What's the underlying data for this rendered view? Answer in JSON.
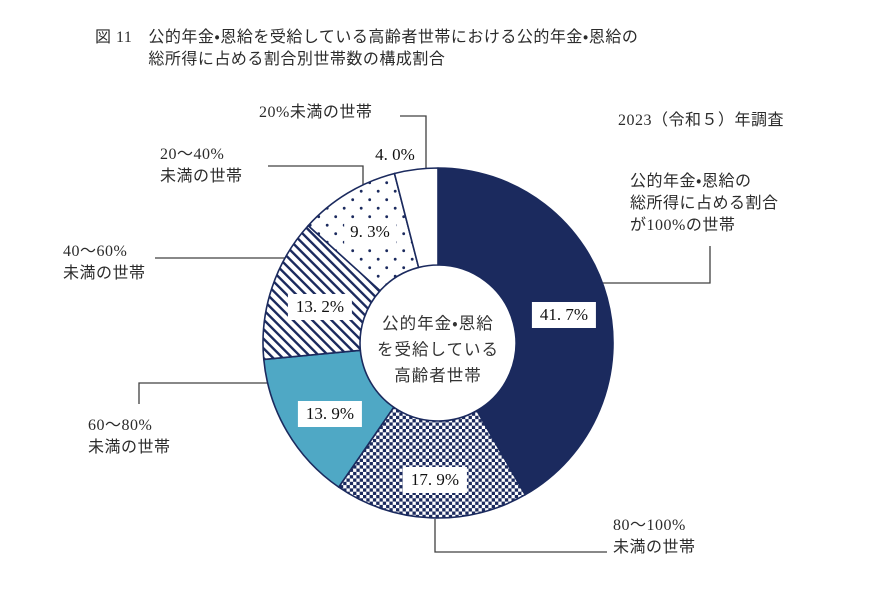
{
  "figure": {
    "number_label": "図 11",
    "title": "公的年金・恩給を受給している高齢者世帯における公的年金・恩給の\n総所得に占める割合別世帯数の構成割合",
    "survey_note": "2023（令和５）年調査"
  },
  "chart_data": {
    "type": "pie",
    "subtype": "donut",
    "title": "公的年金・恩給を受給している高齢者世帯における公的年金・恩給の総所得に占める割合別世帯数の構成割合",
    "center_label": "公的年金・恩給\nを受給している\n高齢者世帯",
    "start_angle_deg": 0,
    "direction": "clockwise",
    "unit": "%",
    "slices": [
      {
        "category": "公的年金・恩給の総所得に占める割合が100%の世帯",
        "label_display": "公的年金・恩給の\n総所得に占める割合\nが100%の世帯",
        "value": 41.7,
        "value_label": "41. 7%",
        "fill": "solid-navy"
      },
      {
        "category": "80〜100%未満の世帯",
        "label_display": "80〜100%\n未満の世帯",
        "value": 17.9,
        "value_label": "17. 9%",
        "fill": "checker"
      },
      {
        "category": "60〜80%未満の世帯",
        "label_display": "60〜80%\n未満の世帯",
        "value": 13.9,
        "value_label": "13. 9%",
        "fill": "solid-teal"
      },
      {
        "category": "40〜60%未満の世帯",
        "label_display": "40〜60%\n未満の世帯",
        "value": 13.2,
        "value_label": "13. 2%",
        "fill": "diagonal"
      },
      {
        "category": "20〜40%未満の世帯",
        "label_display": "20〜40%\n未満の世帯",
        "value": 9.3,
        "value_label": "9. 3%",
        "fill": "dots"
      },
      {
        "category": "20%未満の世帯",
        "label_display": "20%未満の世帯",
        "value": 4.0,
        "value_label": "4. 0%",
        "fill": "plain"
      }
    ],
    "colors": {
      "navy": "#1b2a5e",
      "teal": "#4fa8c5",
      "outline": "#1b2a5e",
      "pattern_background": "#ffffff"
    }
  }
}
